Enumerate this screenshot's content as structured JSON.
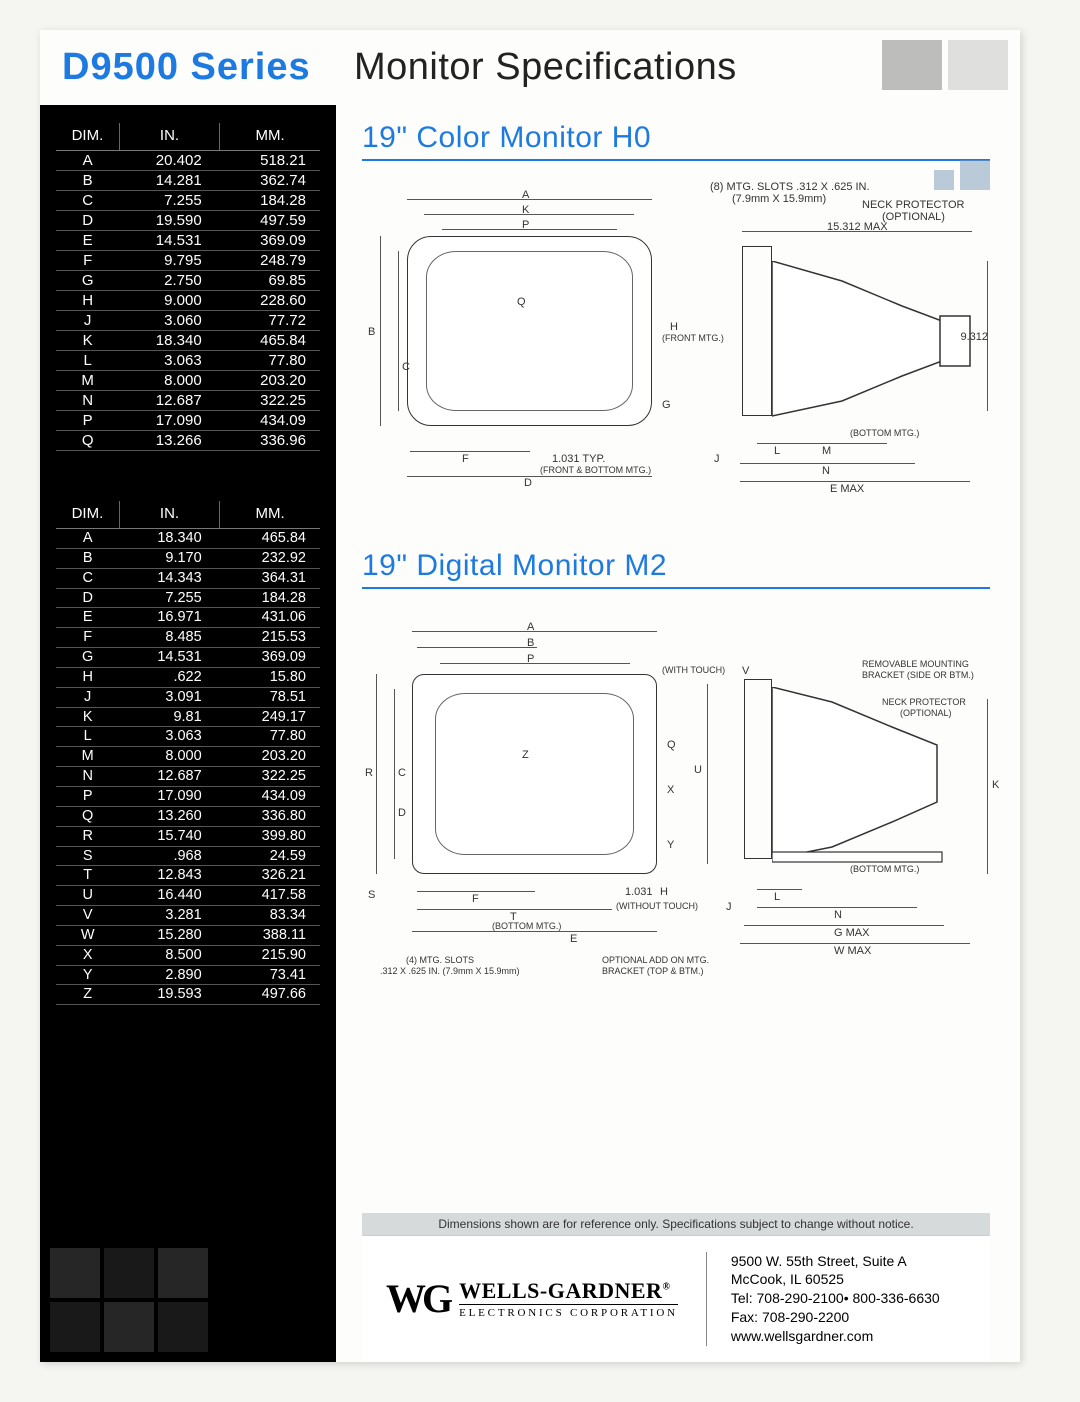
{
  "header": {
    "series": "D9500 Series",
    "spec_title": "Monitor Specifications"
  },
  "colors": {
    "accent": "#1d7ae0",
    "sidebar_bg": "#000000",
    "text_light": "#ffffff",
    "rule": "#1d7ae0"
  },
  "table_headers": {
    "dim": "DIM.",
    "in": "IN.",
    "mm": "MM."
  },
  "table1": {
    "rows": [
      {
        "dim": "A",
        "in": "20.402",
        "mm": "518.21"
      },
      {
        "dim": "B",
        "in": "14.281",
        "mm": "362.74"
      },
      {
        "dim": "C",
        "in": "7.255",
        "mm": "184.28"
      },
      {
        "dim": "D",
        "in": "19.590",
        "mm": "497.59"
      },
      {
        "dim": "E",
        "in": "14.531",
        "mm": "369.09"
      },
      {
        "dim": "F",
        "in": "9.795",
        "mm": "248.79"
      },
      {
        "dim": "G",
        "in": "2.750",
        "mm": "69.85"
      },
      {
        "dim": "H",
        "in": "9.000",
        "mm": "228.60"
      },
      {
        "dim": "J",
        "in": "3.060",
        "mm": "77.72"
      },
      {
        "dim": "K",
        "in": "18.340",
        "mm": "465.84"
      },
      {
        "dim": "L",
        "in": "3.063",
        "mm": "77.80"
      },
      {
        "dim": "M",
        "in": "8.000",
        "mm": "203.20"
      },
      {
        "dim": "N",
        "in": "12.687",
        "mm": "322.25"
      },
      {
        "dim": "P",
        "in": "17.090",
        "mm": "434.09"
      },
      {
        "dim": "Q",
        "in": "13.266",
        "mm": "336.96"
      }
    ]
  },
  "table2": {
    "rows": [
      {
        "dim": "A",
        "in": "18.340",
        "mm": "465.84"
      },
      {
        "dim": "B",
        "in": "9.170",
        "mm": "232.92"
      },
      {
        "dim": "C",
        "in": "14.343",
        "mm": "364.31"
      },
      {
        "dim": "D",
        "in": "7.255",
        "mm": "184.28"
      },
      {
        "dim": "E",
        "in": "16.971",
        "mm": "431.06"
      },
      {
        "dim": "F",
        "in": "8.485",
        "mm": "215.53"
      },
      {
        "dim": "G",
        "in": "14.531",
        "mm": "369.09"
      },
      {
        "dim": "H",
        "in": ".622",
        "mm": "15.80"
      },
      {
        "dim": "J",
        "in": "3.091",
        "mm": "78.51"
      },
      {
        "dim": "K",
        "in": "9.81",
        "mm": "249.17"
      },
      {
        "dim": "L",
        "in": "3.063",
        "mm": "77.80"
      },
      {
        "dim": "M",
        "in": "8.000",
        "mm": "203.20"
      },
      {
        "dim": "N",
        "in": "12.687",
        "mm": "322.25"
      },
      {
        "dim": "P",
        "in": "17.090",
        "mm": "434.09"
      },
      {
        "dim": "Q",
        "in": "13.260",
        "mm": "336.80"
      },
      {
        "dim": "R",
        "in": "15.740",
        "mm": "399.80"
      },
      {
        "dim": "S",
        "in": ".968",
        "mm": "24.59"
      },
      {
        "dim": "T",
        "in": "12.843",
        "mm": "326.21"
      },
      {
        "dim": "U",
        "in": "16.440",
        "mm": "417.58"
      },
      {
        "dim": "V",
        "in": "3.281",
        "mm": "83.34"
      },
      {
        "dim": "W",
        "in": "15.280",
        "mm": "388.11"
      },
      {
        "dim": "X",
        "in": "8.500",
        "mm": "215.90"
      },
      {
        "dim": "Y",
        "in": "2.890",
        "mm": "73.41"
      },
      {
        "dim": "Z",
        "in": "19.593",
        "mm": "497.66"
      }
    ]
  },
  "section1": {
    "title": "19\" Color Monitor H0",
    "labels": {
      "mtg_slots": "(8) MTG. SLOTS .312 X .625 IN.",
      "mtg_slots_mm": "(7.9mm X 15.9mm)",
      "neck_protector": "NECK PROTECTOR",
      "optional": "(OPTIONAL)",
      "max_w": "15.312 MAX",
      "side_h": "9.312",
      "front_mtg": "(FRONT MTG.)",
      "bottom_mtg": "(BOTTOM MTG.)",
      "front_bottom_mtg": "(FRONT & BOTTOM MTG.)",
      "typ": "1.031 TYP.",
      "dims": {
        "A": "A",
        "B": "B",
        "C": "C",
        "D": "D",
        "E": "E MAX",
        "F": "F",
        "G": "G",
        "H": "H",
        "J": "J",
        "K": "K",
        "L": "L",
        "M": "M",
        "N": "N",
        "P": "P",
        "Q": "Q"
      }
    }
  },
  "section2": {
    "title": "19\" Digital Monitor M2",
    "labels": {
      "with_touch": "(WITH TOUCH)",
      "without_touch": "(WITHOUT TOUCH)",
      "removable": "REMOVABLE MOUNTING",
      "removable2": "BRACKET (SIDE OR BTM.)",
      "neck_protector": "NECK PROTECTOR",
      "optional": "(OPTIONAL)",
      "bottom_mtg": "(BOTTOM MTG.)",
      "mtg_slots": "(4) MTG. SLOTS",
      "mtg_slots_dim": ".312 X .625 IN. (7.9mm X 15.9mm)",
      "optional_add": "OPTIONAL ADD ON MTG.",
      "optional_add2": "BRACKET (TOP & BTM.)",
      "val_1031": "1.031",
      "dims": {
        "A": "A",
        "B": "B",
        "C": "C",
        "D": "D",
        "E": "E",
        "F": "F",
        "G": "G MAX",
        "H": "H",
        "J": "J",
        "K": "K",
        "L": "L",
        "N": "N",
        "P": "P",
        "Q": "Q",
        "R": "R",
        "S": "S",
        "T": "T",
        "U": "U",
        "V": "V",
        "W": "W MAX",
        "X": "X",
        "Y": "Y",
        "Z": "Z"
      }
    }
  },
  "disclaimer": "Dimensions shown are for reference only. Specifications subject to change without notice.",
  "footer": {
    "logo_mark": "WG",
    "company": "WELLS-GARDNER",
    "reg": "®",
    "subtitle": "ELECTRONICS CORPORATION",
    "addr1": "9500 W. 55th Street, Suite A",
    "addr2": "McCook, IL 60525",
    "tel": "Tel: 708-290-2100• 800-336-6630",
    "fax": "Fax: 708-290-2200",
    "web": "www.wellsgardner.com"
  }
}
